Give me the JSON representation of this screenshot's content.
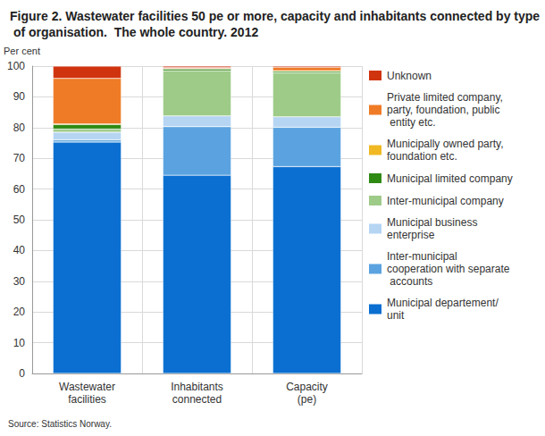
{
  "chart_data": {
    "type": "bar",
    "stacked": true,
    "title": "Figure 2. Wastewater facilities 50 pe or more, capacity and inhabitants connected by type of organisation.  The whole country. 2012",
    "ylabel": "Per cent",
    "annotations": [
      "Source: Statistics Norway."
    ],
    "categories": [
      "Wastewater\nfacilities",
      "Inhabitants\nconnected",
      "Capacity\n(pe)"
    ],
    "ylim": [
      0,
      100
    ],
    "yticks": [
      0,
      10,
      20,
      30,
      40,
      50,
      60,
      70,
      80,
      90,
      100
    ],
    "grid": true,
    "legend": "right",
    "series": [
      {
        "name": "Municipal departement/unit",
        "color": "#0a6fd0",
        "values": [
          75.3,
          64.5,
          67.3
        ]
      },
      {
        "name": "Inter-municipal cooperation with separate accounts",
        "color": "#5aa3e0",
        "values": [
          0.7,
          15.8,
          12.8
        ]
      },
      {
        "name": "Municipal business enterprise",
        "color": "#b5d5f3",
        "values": [
          2.5,
          3.5,
          3.4
        ]
      },
      {
        "name": "Inter-municipal company",
        "color": "#9ecb88",
        "values": [
          1.0,
          14.7,
          14.3
        ]
      },
      {
        "name": "Municipal limited company",
        "color": "#2f8a14",
        "values": [
          1.5,
          0.6,
          0.5
        ]
      },
      {
        "name": "Municipally owned party, foundation etc.",
        "color": "#f0b823",
        "values": [
          0.2,
          0.1,
          0.2
        ]
      },
      {
        "name": "Private limited company, party, foundation, public entity etc.",
        "color": "#ef7b26",
        "values": [
          14.8,
          0.3,
          1.1
        ]
      },
      {
        "name": "Unknown",
        "color": "#d0340f",
        "values": [
          4.0,
          0.5,
          0.4
        ]
      }
    ]
  }
}
